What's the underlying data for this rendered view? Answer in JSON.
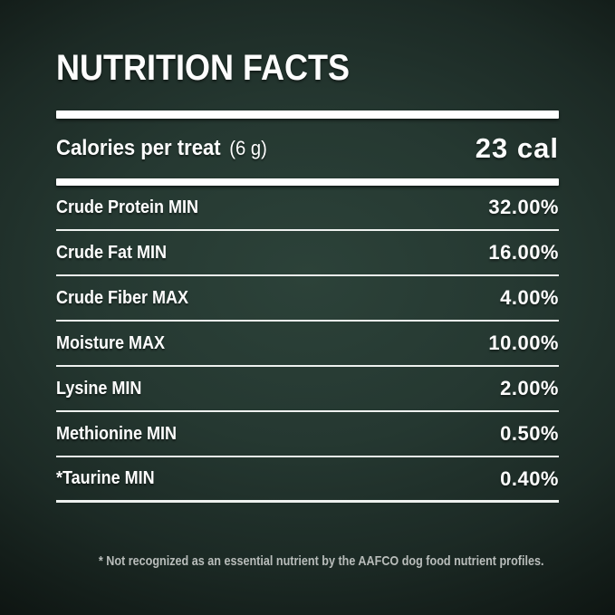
{
  "title": "NUTRITION FACTS",
  "calories": {
    "label": "Calories per treat",
    "serving": "(6 g)",
    "value": "23 cal"
  },
  "nutrients": [
    {
      "label": "Crude Protein MIN",
      "value": "32.00%"
    },
    {
      "label": "Crude Fat MIN",
      "value": "16.00%"
    },
    {
      "label": "Crude Fiber MAX",
      "value": "4.00%"
    },
    {
      "label": "Moisture MAX",
      "value": "10.00%"
    },
    {
      "label": "Lysine MIN",
      "value": "2.00%"
    },
    {
      "label": "Methionine MIN",
      "value": "0.50%"
    },
    {
      "label": "*Taurine MIN",
      "value": "0.40%"
    }
  ],
  "footnote": "* Not recognized as an essential nutrient by the AAFCO dog food nutrient profiles.",
  "colors": {
    "background_center": "#2c4239",
    "background_edge": "#000000",
    "text": "#fdfdfd",
    "rule": "#ffffff",
    "footnote_text": "#b9bdbb"
  }
}
